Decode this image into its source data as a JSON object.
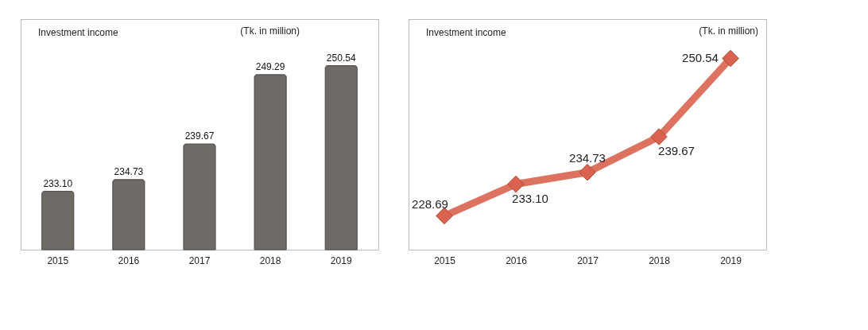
{
  "chart_data": [
    {
      "type": "bar",
      "title": "Investment income",
      "subtitle": "(Tk. in million)",
      "categories": [
        "2015",
        "2016",
        "2017",
        "2018",
        "2019"
      ],
      "values": [
        233.1,
        234.73,
        239.67,
        249.29,
        250.54
      ],
      "value_labels": [
        "233.10",
        "234.73",
        "239.67",
        "249.29",
        "250.54"
      ],
      "color": "#6e6a66",
      "ylim": [
        225,
        257
      ],
      "tick_labels": "x"
    },
    {
      "type": "line",
      "title": "Investment income",
      "subtitle": "(Tk. in million)",
      "categories": [
        "2015",
        "2016",
        "2017",
        "2018",
        "2019"
      ],
      "values": [
        228.69,
        233.1,
        234.73,
        239.67,
        250.54
      ],
      "value_labels": [
        "228.69",
        "233.10",
        "234.73",
        "239.67",
        "250.54"
      ],
      "color": "#d9634f",
      "ylim": [
        224,
        256
      ],
      "marker": "diamond",
      "line_style": "solid",
      "tick_labels": "x"
    }
  ]
}
